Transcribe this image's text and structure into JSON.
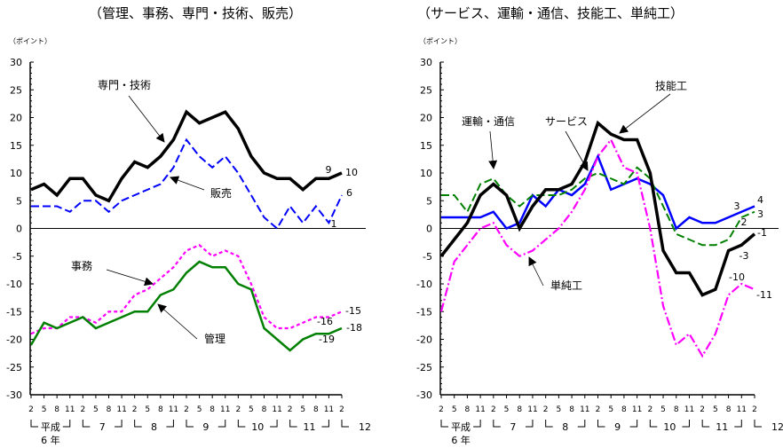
{
  "chart_data": [
    {
      "type": "line",
      "title": "（管理、事務、専門・技術、販売）",
      "ylabel": "（ポイント）",
      "ylim": [
        -30,
        30
      ],
      "yticks": [
        30,
        25,
        20,
        15,
        10,
        5,
        0,
        -5,
        -10,
        -15,
        -20,
        -25,
        -30
      ],
      "x_month_labels": [
        "2",
        "5",
        "8",
        "11",
        "2",
        "5",
        "8",
        "11",
        "2",
        "5",
        "8",
        "11",
        "2",
        "5",
        "8",
        "11",
        "2",
        "5",
        "8",
        "11",
        "2",
        "5",
        "8",
        "11",
        "2"
      ],
      "x_year_labels": [
        "平成",
        "7",
        "8",
        "9",
        "10",
        "11",
        "12"
      ],
      "x_year_sub": "6 年",
      "grid": false,
      "series": [
        {
          "name": "専門・技術",
          "color": "#000000",
          "style": "solid-thick",
          "values": [
            7,
            8,
            6,
            9,
            9,
            6,
            5,
            9,
            12,
            11,
            13,
            16,
            21,
            19,
            20,
            21,
            18,
            13,
            10,
            9,
            9,
            7,
            9,
            9,
            10
          ],
          "end_labels": [
            "9",
            "10"
          ]
        },
        {
          "name": "販売",
          "color": "#0000ff",
          "style": "dashed",
          "values": [
            4,
            4,
            4,
            3,
            5,
            5,
            3,
            5,
            6,
            7,
            8,
            11,
            16,
            13,
            11,
            13,
            10,
            6,
            2,
            0,
            4,
            1,
            4,
            1,
            6
          ],
          "end_labels": [
            "1",
            "6"
          ]
        },
        {
          "name": "事務",
          "color": "#ff00ff",
          "style": "dotted",
          "values": [
            -19,
            -18,
            -18,
            -16,
            -16,
            -17,
            -15,
            -15,
            -12,
            -11,
            -9,
            -7,
            -4,
            -3,
            -5,
            -4,
            -5,
            -10,
            -16,
            -18,
            -18,
            -17,
            -16,
            -16,
            -15
          ],
          "end_labels": [
            "-16",
            "-15"
          ]
        },
        {
          "name": "管理",
          "color": "#008000",
          "style": "solid",
          "values": [
            -21,
            -17,
            -18,
            -17,
            -16,
            -18,
            -17,
            -16,
            -15,
            -15,
            -12,
            -11,
            -8,
            -6,
            -7,
            -7,
            -10,
            -11,
            -18,
            -20,
            -22,
            -20,
            -19,
            -19,
            -18
          ],
          "end_labels": [
            "-19",
            "-18"
          ]
        }
      ]
    },
    {
      "type": "line",
      "title": "（サービス、運輸・通信、技能工、単純工）",
      "ylabel": "（ポイント）",
      "ylim": [
        -30,
        30
      ],
      "yticks": [
        30,
        25,
        20,
        15,
        10,
        5,
        0,
        -5,
        -10,
        -15,
        -20,
        -25,
        -30
      ],
      "x_month_labels": [
        "2",
        "5",
        "8",
        "11",
        "2",
        "5",
        "8",
        "11",
        "2",
        "5",
        "8",
        "11",
        "2",
        "5",
        "8",
        "11",
        "2",
        "5",
        "8",
        "11",
        "2",
        "5",
        "8",
        "11",
        "2"
      ],
      "x_year_labels": [
        "平成",
        "7",
        "8",
        "9",
        "10",
        "11",
        "12"
      ],
      "x_year_sub": "6 年",
      "grid": false,
      "series": [
        {
          "name": "技能工",
          "color": "#000000",
          "style": "solid-thick",
          "values": [
            -5,
            -2,
            1,
            6,
            8,
            6,
            0,
            4,
            7,
            7,
            8,
            12,
            19,
            17,
            16,
            16,
            10,
            -4,
            -8,
            -8,
            -12,
            -11,
            -4,
            -3,
            -1
          ],
          "end_labels": [
            "-3",
            "-1"
          ]
        },
        {
          "name": "サービス",
          "color": "#0000ff",
          "style": "solid",
          "values": [
            2,
            2,
            2,
            2,
            3,
            0,
            1,
            6,
            4,
            7,
            6,
            8,
            13,
            7,
            8,
            9,
            8,
            6,
            0,
            2,
            1,
            1,
            2,
            3,
            4
          ],
          "end_labels": [
            "3",
            "4"
          ]
        },
        {
          "name": "運輸・通信",
          "color": "#008000",
          "style": "dashed",
          "values": [
            6,
            6,
            3,
            8,
            9,
            6,
            4,
            6,
            6,
            6,
            7,
            9,
            10,
            9,
            8,
            11,
            9,
            4,
            -1,
            -2,
            -3,
            -3,
            -2,
            2,
            3
          ],
          "end_labels": [
            "2",
            "3"
          ]
        },
        {
          "name": "単純工",
          "color": "#ff00ff",
          "style": "dashdot",
          "values": [
            -15,
            -6,
            -3,
            0,
            1,
            -3,
            -5,
            -4,
            -2,
            0,
            3,
            7,
            13,
            16,
            11,
            10,
            0,
            -14,
            -21,
            -19,
            -23,
            -19,
            -12,
            -10,
            -11
          ],
          "end_labels": [
            "-10",
            "-11"
          ]
        }
      ]
    }
  ]
}
